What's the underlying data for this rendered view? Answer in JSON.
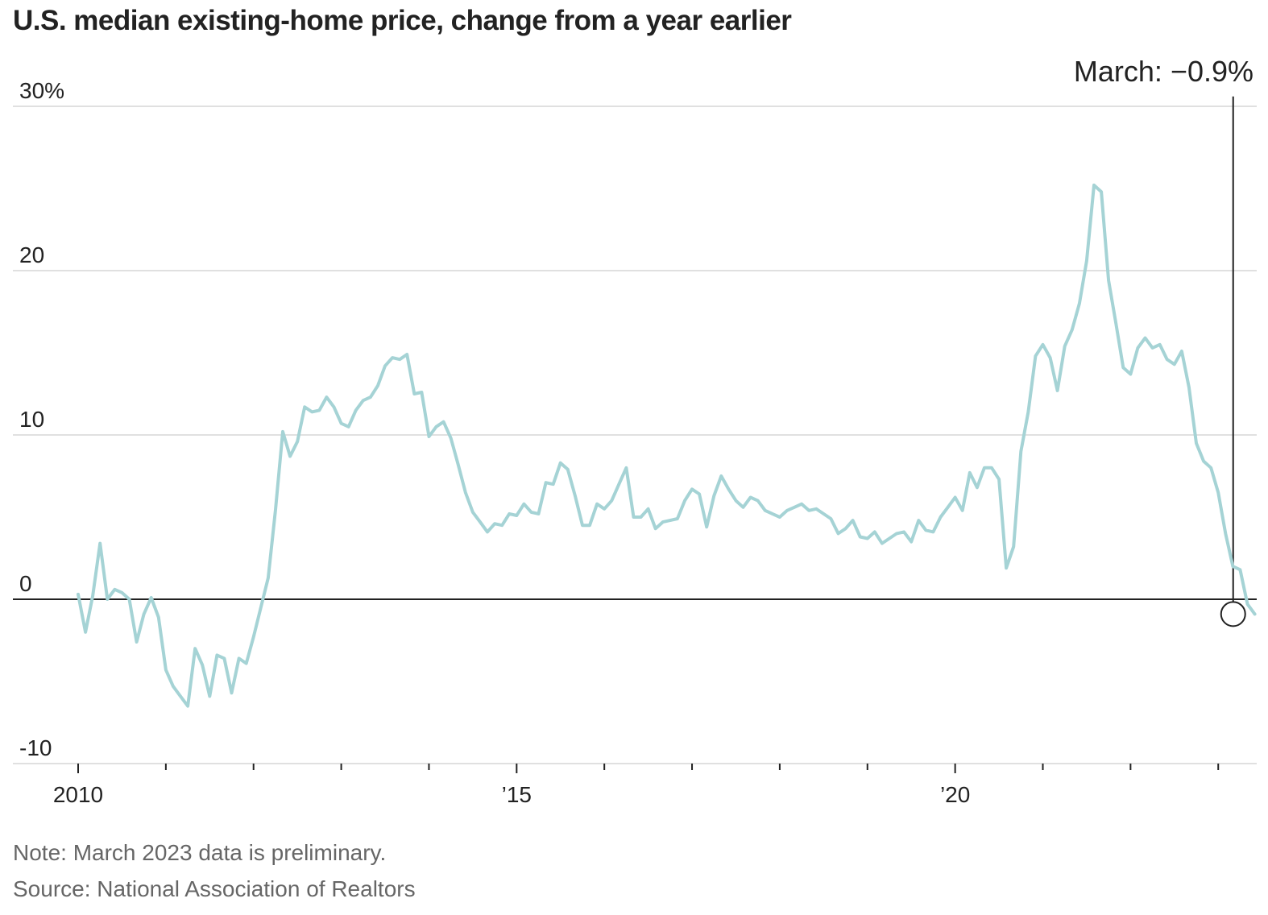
{
  "chart_data": {
    "type": "line",
    "title": "U.S. median existing-home price, change from a year earlier",
    "xlabel": "",
    "ylabel": "",
    "y_ticks": [
      {
        "value": 30,
        "label": "30%"
      },
      {
        "value": 20,
        "label": "20"
      },
      {
        "value": 10,
        "label": "10"
      },
      {
        "value": 0,
        "label": "0"
      },
      {
        "value": -10,
        "label": "-10"
      }
    ],
    "x_ticks": [
      {
        "value": 2010,
        "label": "2010"
      },
      {
        "value": 2015,
        "label": "’15"
      },
      {
        "value": 2020,
        "label": "’20"
      }
    ],
    "minor_x_ticks": [
      2011,
      2012,
      2013,
      2014,
      2016,
      2017,
      2018,
      2019,
      2021,
      2022,
      2023
    ],
    "ylim": [
      -10,
      30
    ],
    "xlim": [
      2010,
      2023.2
    ],
    "grid": true,
    "colors": {
      "line": "#a5d3d5",
      "zero_line": "#222222",
      "grid": "#e0e0e0",
      "annotation": "#222222"
    },
    "series": [
      {
        "start": "2010-01",
        "frequency": "monthly",
        "values": [
          0.3,
          -2.0,
          0.2,
          3.4,
          0.0,
          0.6,
          0.4,
          0.0,
          -2.6,
          -0.9,
          0.1,
          -1.1,
          -4.3,
          -5.3,
          -5.9,
          -6.5,
          -3.0,
          -4.0,
          -5.9,
          -3.4,
          -3.6,
          -5.7,
          -3.6,
          -3.9,
          -2.3,
          -0.5,
          1.3,
          5.4,
          10.2,
          8.7,
          9.6,
          11.7,
          11.4,
          11.5,
          12.3,
          11.7,
          10.7,
          10.5,
          11.5,
          12.1,
          12.3,
          13.0,
          14.2,
          14.7,
          14.6,
          14.9,
          12.5,
          12.6,
          9.9,
          10.5,
          10.8,
          9.8,
          8.2,
          6.5,
          5.3,
          4.7,
          4.1,
          4.6,
          4.5,
          5.2,
          5.1,
          5.8,
          5.3,
          5.2,
          7.1,
          7.0,
          8.3,
          7.9,
          6.3,
          4.5,
          4.5,
          5.8,
          5.5,
          6.0,
          7.0,
          8.0,
          5.0,
          5.0,
          5.5,
          4.3,
          4.7,
          4.8,
          4.9,
          6.0,
          6.7,
          6.4,
          4.4,
          6.3,
          7.5,
          6.7,
          6.0,
          5.6,
          6.2,
          6.0,
          5.4,
          5.2,
          5.0,
          5.4,
          5.6,
          5.8,
          5.4,
          5.5,
          5.2,
          4.9,
          4.0,
          4.3,
          4.8,
          3.8,
          3.7,
          4.1,
          3.4,
          3.7,
          4.0,
          4.1,
          3.5,
          4.8,
          4.2,
          4.1,
          5.0,
          5.6,
          6.2,
          5.4,
          7.7,
          6.8,
          8.0,
          8.0,
          7.3,
          1.9,
          3.2,
          9.0,
          11.4,
          14.8,
          15.5,
          14.7,
          12.7,
          15.4,
          16.4,
          18.0,
          20.6,
          25.2,
          24.8,
          19.4,
          16.8,
          14.1,
          13.7,
          15.3,
          15.9,
          15.3,
          15.5,
          14.6,
          14.3,
          15.1,
          12.9,
          9.5,
          8.4,
          8.0,
          6.5,
          4.0,
          2.0,
          1.8,
          -0.3,
          -0.9
        ]
      }
    ],
    "annotation": {
      "label": "March: −0.9%",
      "x": 2023.17,
      "y": -0.9
    },
    "note": "Note: March 2023 data is preliminary.",
    "source": "Source: National Association of Realtors"
  }
}
